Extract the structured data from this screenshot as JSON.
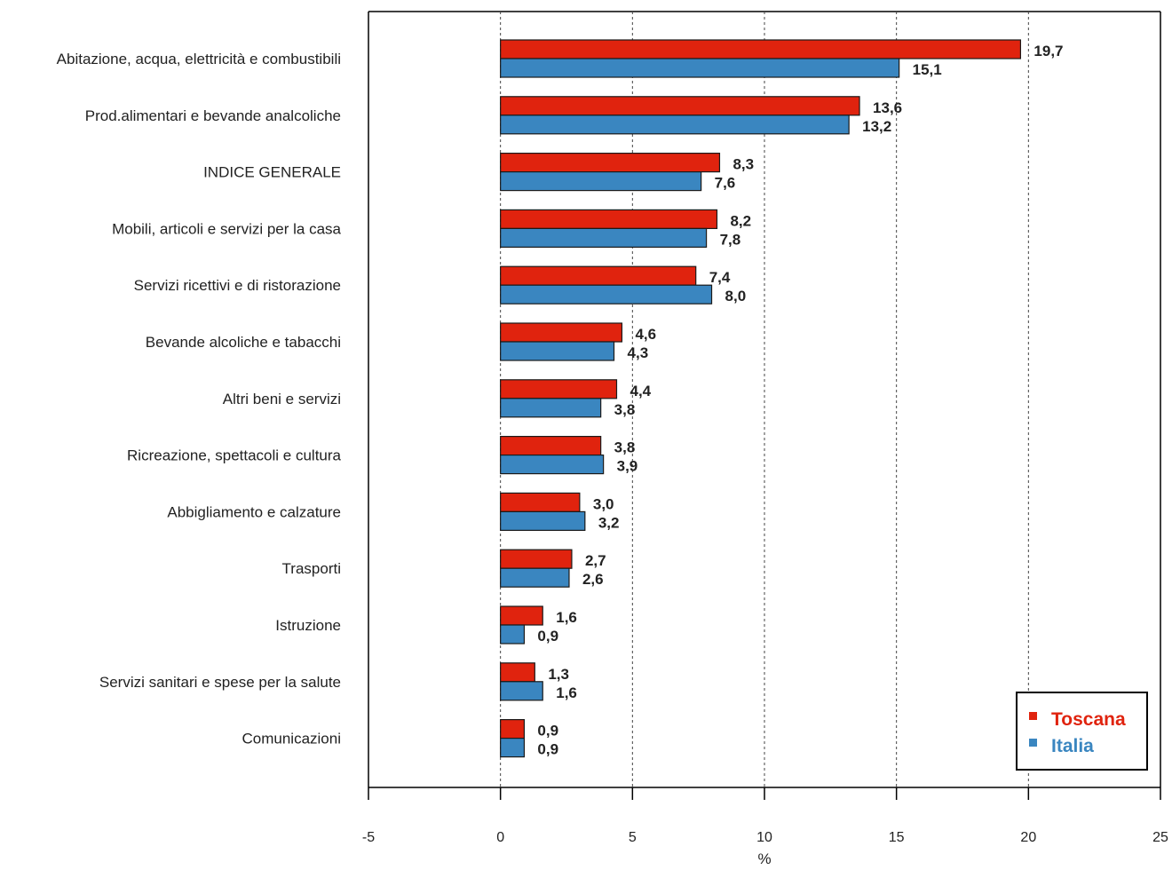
{
  "chart_data": {
    "type": "bar",
    "orientation": "horizontal",
    "categories": [
      "Abitazione, acqua, elettricità e combustibili",
      "Prod.alimentari e bevande analcoliche",
      "INDICE GENERALE",
      "Mobili, articoli e servizi per la casa",
      "Servizi ricettivi e di ristorazione",
      "Bevande alcoliche e tabacchi",
      "Altri beni e servizi",
      "Ricreazione, spettacoli e cultura",
      "Abbigliamento e calzature",
      "Trasporti",
      "Istruzione",
      "Servizi sanitari e spese per la salute",
      "Comunicazioni"
    ],
    "series": [
      {
        "name": "Toscana",
        "color": "#e0230e",
        "values": [
          19.7,
          13.6,
          8.3,
          8.2,
          7.4,
          4.6,
          4.4,
          3.8,
          3.0,
          2.7,
          1.6,
          1.3,
          0.9
        ],
        "labels": [
          "19,7",
          "13,6",
          "8,3",
          "8,2",
          "7,4",
          "4,6",
          "4,4",
          "3,8",
          "3,0",
          "2,7",
          "1,6",
          "1,3",
          "0,9"
        ]
      },
      {
        "name": "Italia",
        "color": "#3a86c0",
        "values": [
          15.1,
          13.2,
          7.6,
          7.8,
          8.0,
          4.3,
          3.8,
          3.9,
          3.2,
          2.6,
          0.9,
          1.6,
          0.9
        ],
        "labels": [
          "15,1",
          "13,2",
          "7,6",
          "7,8",
          "8,0",
          "4,3",
          "3,8",
          "3,9",
          "3,2",
          "2,6",
          "0,9",
          "1,6",
          "0,9"
        ]
      }
    ],
    "xlim": [
      -5,
      25
    ],
    "xticks": [
      -5,
      0,
      5,
      10,
      15,
      20,
      25
    ],
    "xlabel": "%",
    "gridlines": "vertical dashed",
    "legend_position": "bottom-right"
  }
}
